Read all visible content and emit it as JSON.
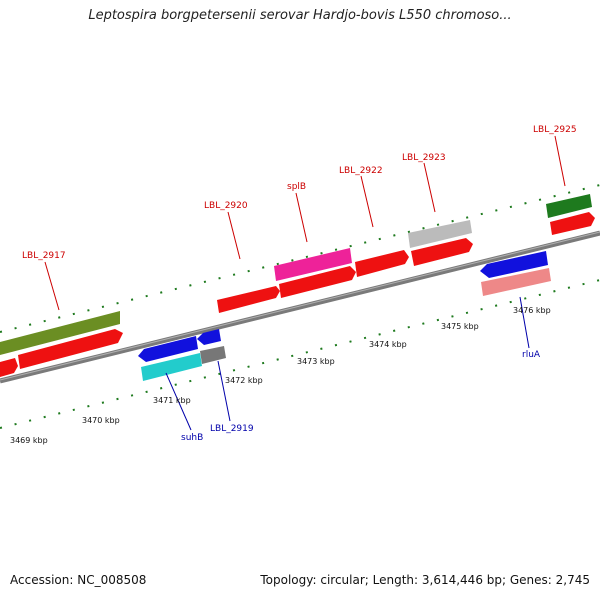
{
  "title": "Leptospira borgpetersenii serovar Hardjo-bovis L550 chromoso...",
  "footer": {
    "accession": "Accession: NC_008508",
    "summary": "Topology: circular; Length: 3,614,446 bp; Genes: 2,745"
  },
  "colors": {
    "backbone": "#7a7a7a",
    "tick_green": "#1e7a1e",
    "label_red": "#cc0000",
    "label_blue": "#0000aa"
  },
  "tick_labels": [
    "3469 kbp",
    "3470 kbp",
    "3471 kbp",
    "3472 kbp",
    "3473 kbp",
    "3474 kbp",
    "3475 kbp",
    "3476 kbp"
  ],
  "gene_labels": {
    "lbl_2917": "LBL_2917",
    "lbl_2920": "LBL_2920",
    "splb": "splB",
    "lbl_2922": "LBL_2922",
    "lbl_2923": "LBL_2923",
    "lbl_2925": "LBL_2925",
    "suhb": "suhB",
    "lbl_2919": "LBL_2919",
    "rlua": "rluA"
  },
  "features": [
    {
      "name": "feature-olive-1",
      "color": "#6b8e23",
      "strand": "forward"
    },
    {
      "name": "feature-red-1",
      "color": "#ee1111",
      "strand": "forward"
    },
    {
      "name": "feature-red-2",
      "color": "#ee1111",
      "strand": "forward"
    },
    {
      "name": "feature-pink-splB",
      "color": "#ee2299",
      "strand": "forward"
    },
    {
      "name": "feature-red-3",
      "color": "#ee1111",
      "strand": "forward"
    },
    {
      "name": "feature-red-4",
      "color": "#ee1111",
      "strand": "forward"
    },
    {
      "name": "feature-gray-2923",
      "color": "#bbbbbb",
      "strand": "forward"
    },
    {
      "name": "feature-red-5",
      "color": "#ee1111",
      "strand": "forward"
    },
    {
      "name": "feature-green-2925",
      "color": "#1e7a1e",
      "strand": "forward"
    },
    {
      "name": "feature-red-6",
      "color": "#ee1111",
      "strand": "forward"
    },
    {
      "name": "feature-blue-1",
      "color": "#1111dd",
      "strand": "reverse"
    },
    {
      "name": "feature-blue-2",
      "color": "#1111dd",
      "strand": "reverse"
    },
    {
      "name": "feature-cyan-suhB",
      "color": "#22cccc",
      "strand": "reverse"
    },
    {
      "name": "feature-gray-2919",
      "color": "#777777",
      "strand": "reverse"
    },
    {
      "name": "feature-blue-rluA",
      "color": "#1111dd",
      "strand": "reverse"
    },
    {
      "name": "feature-salmon",
      "color": "#ee8888",
      "strand": "reverse"
    }
  ]
}
